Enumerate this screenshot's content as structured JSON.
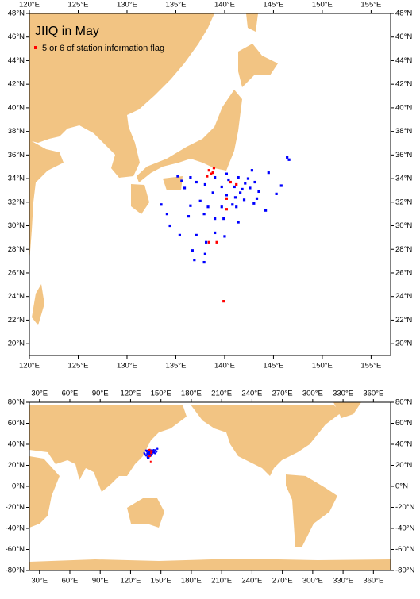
{
  "chart_data": [
    {
      "type": "scatter",
      "title": "JIIQ in May",
      "xlim": [
        120,
        157
      ],
      "ylim": [
        19,
        48
      ],
      "xticks": [
        {
          "value": 120,
          "label": "120°E"
        },
        {
          "value": 125,
          "label": "125°E"
        },
        {
          "value": 130,
          "label": "130°E"
        },
        {
          "value": 135,
          "label": "135°E"
        },
        {
          "value": 140,
          "label": "140°E"
        },
        {
          "value": 145,
          "label": "145°E"
        },
        {
          "value": 150,
          "label": "150°E"
        },
        {
          "value": 155,
          "label": "155°E"
        }
      ],
      "yticks": [
        {
          "value": 20,
          "label": "20°N"
        },
        {
          "value": 22,
          "label": "22°N"
        },
        {
          "value": 24,
          "label": "24°N"
        },
        {
          "value": 26,
          "label": "26°N"
        },
        {
          "value": 28,
          "label": "28°N"
        },
        {
          "value": 30,
          "label": "30°N"
        },
        {
          "value": 32,
          "label": "32°N"
        },
        {
          "value": 34,
          "label": "34°N"
        },
        {
          "value": 36,
          "label": "36°N"
        },
        {
          "value": 38,
          "label": "38°N"
        },
        {
          "value": 40,
          "label": "40°N"
        },
        {
          "value": 42,
          "label": "42°N"
        },
        {
          "value": 44,
          "label": "44°N"
        },
        {
          "value": 46,
          "label": "46°N"
        },
        {
          "value": 48,
          "label": "48°N"
        }
      ],
      "series": [
        {
          "color": "#0000ff",
          "x": [
            146.4,
            146.6,
            140.2,
            142.8,
            144.5,
            141.4,
            139.0,
            137.1,
            135.9,
            138.0,
            139.7,
            141.0,
            141.8,
            142.6,
            143.5,
            145.3,
            145.8,
            138.8,
            140.2,
            141.1,
            142.0,
            143.0,
            137.5,
            136.5,
            138.3,
            139.7,
            141.2,
            144.2,
            133.5,
            134.1,
            136.3,
            137.9,
            139.0,
            139.9,
            141.4,
            134.4,
            135.4,
            137.1,
            139.0,
            140.0,
            138.1,
            136.7,
            138.0,
            136.9,
            137.9,
            142.1,
            140.4,
            142.4,
            143.1,
            141.6,
            140.8,
            143.3,
            136.5,
            135.2,
            135.6
          ],
          "y": [
            35.8,
            35.6,
            34.4,
            34.7,
            34.5,
            34.1,
            34.1,
            33.7,
            33.2,
            33.5,
            33.3,
            33.3,
            33.1,
            33.2,
            32.9,
            32.7,
            33.4,
            32.8,
            32.6,
            32.4,
            32.2,
            31.9,
            32.1,
            31.7,
            31.6,
            31.6,
            31.6,
            31.3,
            31.8,
            31.0,
            30.8,
            31.0,
            30.6,
            30.6,
            30.3,
            30.0,
            29.2,
            29.2,
            29.4,
            29.1,
            28.6,
            27.9,
            27.6,
            27.1,
            26.9,
            33.6,
            33.9,
            34.0,
            33.7,
            32.8,
            31.8,
            32.3,
            34.1,
            34.2,
            33.8
          ]
        },
        {
          "name": "5 or 6 of station information flag",
          "color": "#ff0000",
          "x": [
            140.6,
            140.2,
            141.2,
            140.2,
            139.2,
            139.9,
            138.4,
            138.4,
            138.8,
            138.6,
            138.2,
            138.9
          ],
          "y": [
            33.7,
            32.3,
            33.5,
            31.4,
            28.6,
            23.6,
            28.6,
            34.7,
            34.5,
            34.4,
            34.2,
            34.9
          ]
        }
      ]
    },
    {
      "type": "map",
      "xlim": [
        20,
        377
      ],
      "ylim": [
        -80,
        80
      ],
      "xticks": [
        {
          "value": 30,
          "label": "30°E"
        },
        {
          "value": 60,
          "label": "60°E"
        },
        {
          "value": 90,
          "label": "90°E"
        },
        {
          "value": 120,
          "label": "120°E"
        },
        {
          "value": 150,
          "label": "150°E"
        },
        {
          "value": 180,
          "label": "180°E"
        },
        {
          "value": 210,
          "label": "210°E"
        },
        {
          "value": 240,
          "label": "240°E"
        },
        {
          "value": 270,
          "label": "270°E"
        },
        {
          "value": 300,
          "label": "300°E"
        },
        {
          "value": 330,
          "label": "330°E"
        },
        {
          "value": 360,
          "label": "360°E"
        }
      ],
      "yticks": [
        {
          "value": 80,
          "label": "80°N"
        },
        {
          "value": 60,
          "label": "60°N"
        },
        {
          "value": 40,
          "label": "40°N"
        },
        {
          "value": 20,
          "label": "20°N"
        },
        {
          "value": 0,
          "label": "0°N"
        },
        {
          "value": -20,
          "label": "-20°N"
        },
        {
          "value": -40,
          "label": "-40°N"
        },
        {
          "value": -60,
          "label": "-60°N"
        },
        {
          "value": -80,
          "label": "-80°N"
        }
      ]
    }
  ]
}
